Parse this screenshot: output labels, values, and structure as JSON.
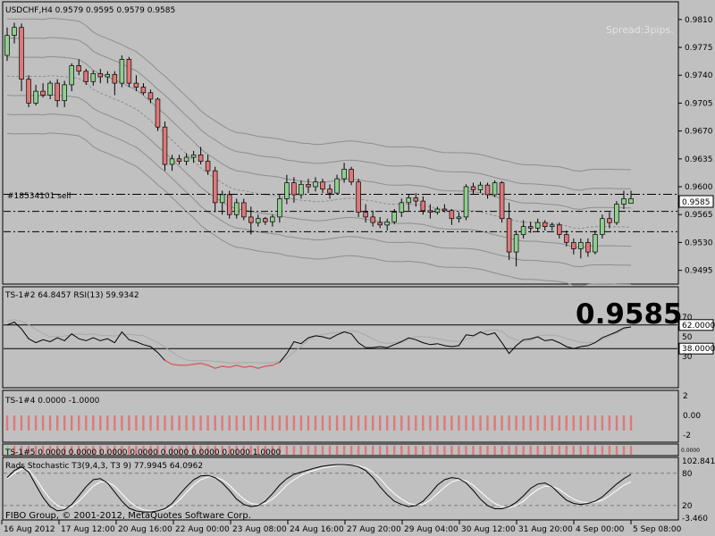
{
  "header": {
    "symbol_line": "USDCHF,H4  0.9579 0.9595 0.9579 0.9585",
    "spread": "Spread:3pips.",
    "order_label": "#18534101 sell",
    "big_price": "0.9585"
  },
  "price_axis": {
    "labels": [
      "0.9810",
      "0.9775",
      "0.9740",
      "0.9705",
      "0.9670",
      "0.9635",
      "0.9600",
      "0.9565",
      "0.9530",
      "0.9495"
    ],
    "current_price": "0.9585"
  },
  "rsi_panel": {
    "title": "TS-1#2 64.8457  RSI(13) 59.9342",
    "axis": [
      "70",
      "62.0000",
      "50",
      "38.0000",
      "30"
    ]
  },
  "ts4_panel": {
    "title": "TS-1#4 0.0000 -1.0000",
    "axis": [
      "2",
      "0.00",
      "-2"
    ]
  },
  "ts5_panel": {
    "title": "TS-1#5 0.0000 0.0000 0.0000 0.0000 0.0000 0.0000 0.0000 1.0000",
    "axis": [
      "0.0000"
    ]
  },
  "stoch_panel": {
    "title": "Rads Stochastic T3(9,4,3, T3 9) 77.9945 64.0962",
    "axis": [
      "102.841",
      "80",
      "20",
      "-3.460"
    ]
  },
  "footer": {
    "copyright": "FIBO Group, © 2001-2012, MetaQuotes Software Corp.",
    "time_labels": [
      "16 Aug 2012",
      "17 Aug 12:00",
      "20 Aug 16:00",
      "22 Aug 00:00",
      "23 Aug 08:00",
      "24 Aug 16:00",
      "27 Aug 20:00",
      "29 Aug 04:00",
      "30 Aug 12:00",
      "31 Aug 20:00",
      "4 Sep 00:00",
      "5 Sep 08:00"
    ]
  },
  "colors": {
    "bg": "#c0c0c0",
    "bull": "#8fd08f",
    "bear": "#e07878",
    "text": "#000000"
  },
  "chart_data": {
    "type": "candlestick",
    "symbol": "USDCHF",
    "timeframe": "H4",
    "ylim": [
      0.948,
      0.983
    ],
    "horizontal_levels": [
      0.95905,
      0.9569,
      0.95435
    ],
    "candles_ohlc": [
      [
        0.9765,
        0.98,
        0.9758,
        0.979
      ],
      [
        0.979,
        0.9806,
        0.978,
        0.98
      ],
      [
        0.98,
        0.9805,
        0.972,
        0.9735
      ],
      [
        0.9735,
        0.974,
        0.97,
        0.9705
      ],
      [
        0.9705,
        0.9728,
        0.9702,
        0.972
      ],
      [
        0.972,
        0.973,
        0.9712,
        0.9715
      ],
      [
        0.9715,
        0.9733,
        0.971,
        0.973
      ],
      [
        0.973,
        0.9735,
        0.97,
        0.9708
      ],
      [
        0.9708,
        0.9733,
        0.97,
        0.9728
      ],
      [
        0.9728,
        0.9755,
        0.972,
        0.9752
      ],
      [
        0.9752,
        0.976,
        0.974,
        0.9745
      ],
      [
        0.9745,
        0.9748,
        0.9728,
        0.9732
      ],
      [
        0.9732,
        0.9746,
        0.9727,
        0.9742
      ],
      [
        0.9742,
        0.9748,
        0.973,
        0.9738
      ],
      [
        0.9738,
        0.9745,
        0.973,
        0.9741
      ],
      [
        0.9741,
        0.9745,
        0.9715,
        0.973
      ],
      [
        0.973,
        0.9765,
        0.9725,
        0.976
      ],
      [
        0.976,
        0.9763,
        0.9725,
        0.973
      ],
      [
        0.973,
        0.974,
        0.972,
        0.9725
      ],
      [
        0.9725,
        0.973,
        0.9715,
        0.9718
      ],
      [
        0.9718,
        0.9722,
        0.9705,
        0.971
      ],
      [
        0.971,
        0.9712,
        0.967,
        0.9675
      ],
      [
        0.9675,
        0.9682,
        0.962,
        0.9628
      ],
      [
        0.9628,
        0.964,
        0.962,
        0.9635
      ],
      [
        0.9635,
        0.964,
        0.9628,
        0.9632
      ],
      [
        0.9632,
        0.9642,
        0.9627,
        0.9637
      ],
      [
        0.9637,
        0.9645,
        0.963,
        0.964
      ],
      [
        0.964,
        0.965,
        0.9628,
        0.9632
      ],
      [
        0.9632,
        0.964,
        0.9615,
        0.962
      ],
      [
        0.962,
        0.9625,
        0.9568,
        0.958
      ],
      [
        0.958,
        0.9595,
        0.9565,
        0.959
      ],
      [
        0.959,
        0.9595,
        0.956,
        0.9565
      ],
      [
        0.9565,
        0.9585,
        0.956,
        0.958
      ],
      [
        0.958,
        0.9585,
        0.9558,
        0.9562
      ],
      [
        0.9562,
        0.9575,
        0.954,
        0.9555
      ],
      [
        0.9555,
        0.9565,
        0.955,
        0.956
      ],
      [
        0.956,
        0.9562,
        0.9552,
        0.9556
      ],
      [
        0.9556,
        0.9565,
        0.955,
        0.9562
      ],
      [
        0.9562,
        0.959,
        0.9555,
        0.9585
      ],
      [
        0.9585,
        0.9615,
        0.9578,
        0.9605
      ],
      [
        0.9605,
        0.9612,
        0.958,
        0.959
      ],
      [
        0.959,
        0.9608,
        0.9585,
        0.9603
      ],
      [
        0.9603,
        0.961,
        0.9592,
        0.96
      ],
      [
        0.96,
        0.9612,
        0.9594,
        0.9606
      ],
      [
        0.9606,
        0.961,
        0.9592,
        0.9597
      ],
      [
        0.9597,
        0.9603,
        0.9585,
        0.9592
      ],
      [
        0.9592,
        0.9615,
        0.959,
        0.961
      ],
      [
        0.961,
        0.963,
        0.9605,
        0.9622
      ],
      [
        0.9622,
        0.9625,
        0.9602,
        0.9606
      ],
      [
        0.9606,
        0.961,
        0.9562,
        0.9568
      ],
      [
        0.9568,
        0.9578,
        0.9555,
        0.9562
      ],
      [
        0.9562,
        0.957,
        0.955,
        0.9555
      ],
      [
        0.9555,
        0.9562,
        0.9548,
        0.9552
      ],
      [
        0.9552,
        0.956,
        0.9545,
        0.9556
      ],
      [
        0.9556,
        0.9572,
        0.9553,
        0.9568
      ],
      [
        0.9568,
        0.9585,
        0.9562,
        0.958
      ],
      [
        0.958,
        0.959,
        0.957,
        0.9586
      ],
      [
        0.9586,
        0.9592,
        0.9575,
        0.9582
      ],
      [
        0.9582,
        0.9588,
        0.9565,
        0.957
      ],
      [
        0.957,
        0.9578,
        0.956,
        0.9568
      ],
      [
        0.9568,
        0.9575,
        0.9565,
        0.9572
      ],
      [
        0.9572,
        0.9578,
        0.9568,
        0.957
      ],
      [
        0.957,
        0.9572,
        0.9552,
        0.956
      ],
      [
        0.956,
        0.9568,
        0.9555,
        0.9562
      ],
      [
        0.9562,
        0.9603,
        0.9558,
        0.96
      ],
      [
        0.96,
        0.9605,
        0.959,
        0.9596
      ],
      [
        0.9596,
        0.9606,
        0.9592,
        0.9602
      ],
      [
        0.9602,
        0.9605,
        0.9585,
        0.959
      ],
      [
        0.959,
        0.9608,
        0.9587,
        0.9605
      ],
      [
        0.9605,
        0.9607,
        0.9555,
        0.956
      ],
      [
        0.956,
        0.958,
        0.9508,
        0.9518
      ],
      [
        0.9518,
        0.9545,
        0.95,
        0.954
      ],
      [
        0.954,
        0.9558,
        0.9535,
        0.955
      ],
      [
        0.955,
        0.9556,
        0.9542,
        0.9548
      ],
      [
        0.9548,
        0.956,
        0.9543,
        0.9555
      ],
      [
        0.9555,
        0.9558,
        0.9545,
        0.955
      ],
      [
        0.955,
        0.9555,
        0.9545,
        0.9552
      ],
      [
        0.9552,
        0.9555,
        0.9535,
        0.954
      ],
      [
        0.954,
        0.9545,
        0.9525,
        0.953
      ],
      [
        0.953,
        0.9535,
        0.9515,
        0.9522
      ],
      [
        0.9522,
        0.9535,
        0.951,
        0.953
      ],
      [
        0.953,
        0.9535,
        0.9512,
        0.9518
      ],
      [
        0.9518,
        0.9545,
        0.9515,
        0.954
      ],
      [
        0.954,
        0.9565,
        0.9535,
        0.956
      ],
      [
        0.956,
        0.9568,
        0.9548,
        0.9555
      ],
      [
        0.9555,
        0.9582,
        0.9552,
        0.9578
      ],
      [
        0.9578,
        0.9595,
        0.9572,
        0.9585
      ],
      [
        0.9579,
        0.9595,
        0.9579,
        0.9585
      ]
    ],
    "rsi": [
      62,
      65,
      58,
      48,
      44,
      47,
      45,
      49,
      46,
      53,
      48,
      46,
      49,
      46,
      48,
      44,
      55,
      47,
      45,
      42,
      40,
      34,
      26,
      22,
      21,
      21,
      22,
      23,
      21,
      18,
      20,
      19,
      21,
      19,
      20,
      18,
      20,
      21,
      24,
      33,
      45,
      43,
      49,
      51,
      50,
      48,
      52,
      55,
      53,
      44,
      39,
      39,
      40,
      39,
      42,
      45,
      49,
      47,
      44,
      42,
      43,
      41,
      40,
      41,
      52,
      51,
      55,
      52,
      54,
      44,
      33,
      41,
      47,
      48,
      50,
      46,
      47,
      44,
      40,
      38,
      40,
      41,
      44,
      49,
      52,
      55,
      59,
      60
    ],
    "stochastic_main": [
      72,
      85,
      92,
      82,
      58,
      35,
      18,
      10,
      12,
      22,
      38,
      55,
      68,
      70,
      62,
      45,
      28,
      15,
      10,
      8,
      8,
      10,
      14,
      24,
      40,
      55,
      68,
      75,
      76,
      72,
      62,
      48,
      32,
      22,
      18,
      20,
      28,
      42,
      58,
      70,
      78,
      82,
      86,
      90,
      93,
      95,
      96,
      96,
      95,
      92,
      85,
      72,
      55,
      40,
      28,
      22,
      18,
      20,
      28,
      42,
      58,
      68,
      72,
      70,
      62,
      48,
      32,
      20,
      14,
      14,
      18,
      26,
      38,
      52,
      60,
      62,
      55,
      42,
      30,
      24,
      22,
      24,
      28,
      36,
      48,
      60,
      70,
      78
    ],
    "stochastic_signal": [
      70,
      80,
      88,
      86,
      70,
      50,
      32,
      20,
      15,
      18,
      28,
      42,
      56,
      64,
      64,
      56,
      42,
      28,
      18,
      12,
      10,
      10,
      12,
      18,
      30,
      44,
      58,
      68,
      73,
      73,
      68,
      58,
      44,
      32,
      24,
      22,
      24,
      32,
      44,
      58,
      68,
      76,
      82,
      86,
      90,
      92,
      94,
      95,
      95,
      94,
      90,
      82,
      70,
      55,
      42,
      32,
      24,
      21,
      22,
      30,
      42,
      54,
      64,
      68,
      66,
      58,
      46,
      34,
      24,
      18,
      16,
      20,
      28,
      40,
      50,
      56,
      56,
      50,
      40,
      32,
      27,
      25,
      26,
      30,
      38,
      48,
      58,
      64
    ]
  }
}
